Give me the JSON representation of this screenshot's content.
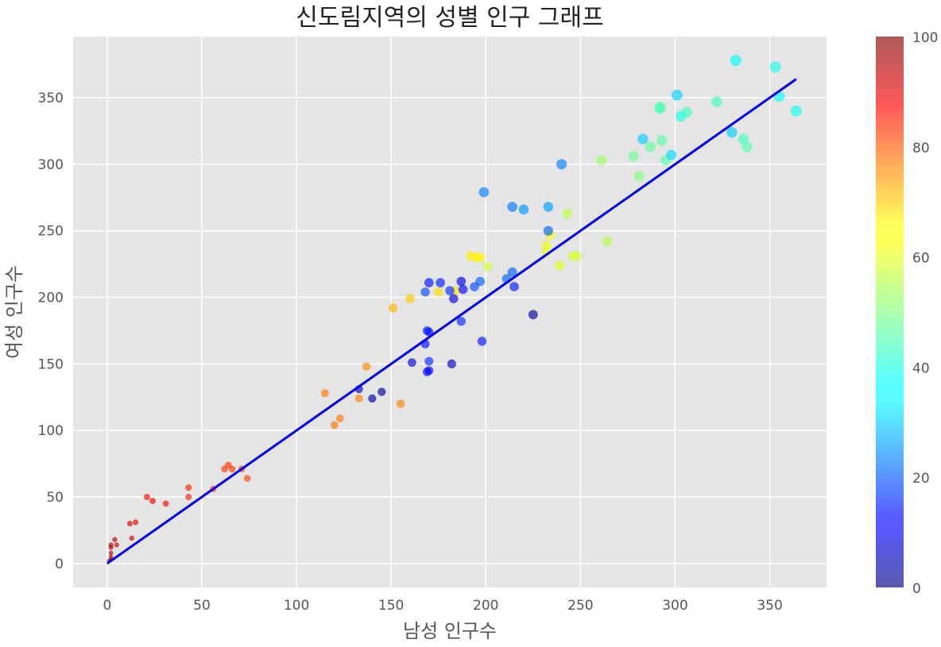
{
  "chart_data": {
    "type": "scatter",
    "title": "신도림지역의 성별 인구 그래프",
    "xlabel": "남성 인구수",
    "ylabel": "여성 인구수",
    "xlim": [
      -18,
      380
    ],
    "ylim": [
      -18,
      396
    ],
    "xticks": [
      "0",
      "50",
      "100",
      "150",
      "200",
      "250",
      "300",
      "350"
    ],
    "yticks": [
      "0",
      "50",
      "100",
      "150",
      "200",
      "250",
      "300",
      "350"
    ],
    "grid": true,
    "colormap": "jet",
    "colorbar": {
      "min": 0,
      "max": 100,
      "ticks": [
        "0",
        "20",
        "40",
        "60",
        "80",
        "100"
      ]
    },
    "line": {
      "x": [
        0,
        364
      ],
      "y": [
        0,
        364
      ],
      "color": "#0000ee"
    },
    "points": [
      [
        1,
        2,
        98
      ],
      [
        2,
        3,
        97
      ],
      [
        2,
        5,
        96
      ],
      [
        2,
        8,
        96
      ],
      [
        2,
        12,
        95
      ],
      [
        2,
        14,
        95
      ],
      [
        4,
        18,
        94
      ],
      [
        5,
        14,
        93
      ],
      [
        13,
        19,
        92
      ],
      [
        12,
        30,
        91
      ],
      [
        15,
        31,
        90
      ],
      [
        21,
        50,
        88
      ],
      [
        24,
        47,
        88
      ],
      [
        31,
        45,
        87
      ],
      [
        43,
        57,
        85
      ],
      [
        43,
        50,
        85
      ],
      [
        56,
        56,
        83
      ],
      [
        62,
        71,
        82
      ],
      [
        64,
        74,
        82
      ],
      [
        66,
        71,
        82
      ],
      [
        71,
        71,
        81
      ],
      [
        74,
        64,
        81
      ],
      [
        115,
        128,
        76
      ],
      [
        120,
        104,
        76
      ],
      [
        123,
        109,
        76
      ],
      [
        133,
        124,
        75
      ],
      [
        137,
        148,
        74
      ],
      [
        151,
        192,
        70
      ],
      [
        155,
        120,
        75
      ],
      [
        160,
        199,
        68
      ],
      [
        175,
        204,
        66
      ],
      [
        184,
        205,
        66
      ],
      [
        192,
        231,
        64
      ],
      [
        195,
        230,
        64
      ],
      [
        197,
        230,
        63
      ],
      [
        201,
        223,
        58
      ],
      [
        232,
        234,
        60
      ],
      [
        232,
        239,
        61
      ],
      [
        234,
        247,
        62
      ],
      [
        239,
        224,
        60
      ],
      [
        243,
        263,
        56
      ],
      [
        246,
        231,
        58
      ],
      [
        248,
        231,
        58
      ],
      [
        261,
        303,
        53
      ],
      [
        264,
        242,
        55
      ],
      [
        278,
        306,
        48
      ],
      [
        281,
        291,
        50
      ],
      [
        287,
        313,
        47
      ],
      [
        292,
        343,
        45
      ],
      [
        292,
        342,
        45
      ],
      [
        293,
        318,
        46
      ],
      [
        295,
        303,
        46
      ],
      [
        306,
        339,
        44
      ],
      [
        322,
        347,
        44
      ],
      [
        336,
        319,
        44
      ],
      [
        338,
        313,
        46
      ],
      [
        303,
        336,
        40
      ],
      [
        353,
        373,
        40
      ],
      [
        355,
        351,
        38
      ],
      [
        364,
        340,
        39
      ],
      [
        332,
        378,
        38
      ],
      [
        330,
        324,
        33
      ],
      [
        301,
        352,
        33
      ],
      [
        298,
        307,
        34
      ],
      [
        283,
        319,
        33
      ],
      [
        240,
        300,
        25
      ],
      [
        233,
        268,
        28
      ],
      [
        220,
        266,
        27
      ],
      [
        214,
        268,
        24
      ],
      [
        199,
        279,
        25
      ],
      [
        233,
        250,
        22
      ],
      [
        214,
        219,
        22
      ],
      [
        211,
        214,
        22
      ],
      [
        197,
        212,
        22
      ],
      [
        194,
        208,
        20
      ],
      [
        215,
        208,
        15
      ],
      [
        188,
        206,
        12
      ],
      [
        187,
        212,
        10
      ],
      [
        183,
        199,
        8
      ],
      [
        176,
        211,
        15
      ],
      [
        170,
        211,
        14
      ],
      [
        181,
        205,
        17
      ],
      [
        168,
        204,
        20
      ],
      [
        169,
        175,
        15
      ],
      [
        170,
        174,
        14
      ],
      [
        168,
        165,
        13
      ],
      [
        170,
        152,
        17
      ],
      [
        169,
        144,
        12
      ],
      [
        170,
        145,
        13
      ],
      [
        161,
        151,
        8
      ],
      [
        182,
        150,
        6
      ],
      [
        187,
        182,
        16
      ],
      [
        198,
        167,
        14
      ],
      [
        225,
        187,
        3
      ],
      [
        145,
        129,
        3
      ],
      [
        140,
        124,
        4
      ],
      [
        133,
        131,
        5
      ]
    ]
  }
}
